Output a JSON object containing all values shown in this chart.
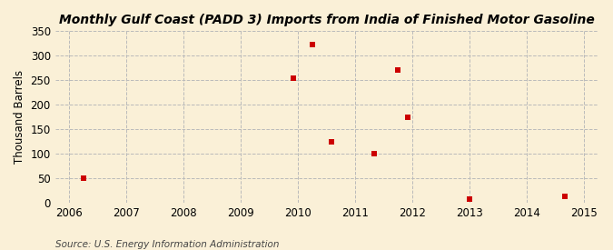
{
  "title": "Monthly Gulf Coast (PADD 3) Imports from India of Finished Motor Gasoline",
  "ylabel": "Thousand Barrels",
  "source": "Source: U.S. Energy Information Administration",
  "background_color": "#faf0d7",
  "plot_bg_color": "#faf0d7",
  "marker_color": "#cc0000",
  "marker_size": 5,
  "xlim": [
    2005.75,
    2015.25
  ],
  "ylim": [
    0,
    350
  ],
  "yticks": [
    0,
    50,
    100,
    150,
    200,
    250,
    300,
    350
  ],
  "xticks": [
    2006,
    2007,
    2008,
    2009,
    2010,
    2011,
    2012,
    2013,
    2014,
    2015
  ],
  "data_x": [
    2006.25,
    2009.92,
    2010.25,
    2010.58,
    2011.33,
    2011.75,
    2011.92,
    2013.0,
    2014.67
  ],
  "data_y": [
    50,
    255,
    323,
    125,
    100,
    270,
    175,
    8,
    13
  ],
  "title_fontsize": 10,
  "label_fontsize": 8.5,
  "tick_fontsize": 8.5,
  "source_fontsize": 7.5
}
